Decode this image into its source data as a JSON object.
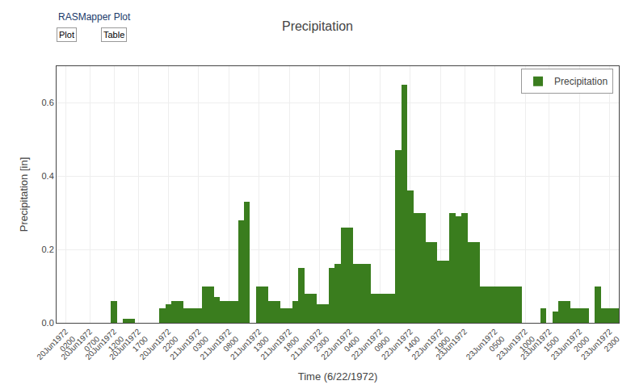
{
  "chart_data": {
    "type": "bar",
    "title": "Precipitation",
    "xlabel": "Time (6/22/1972)",
    "ylabel": "Precipitation [in]",
    "annotations": [
      {
        "text": "RASMapper Plot"
      },
      {
        "text": "Plot"
      },
      {
        "text": "Table"
      }
    ],
    "categories": [
      null,
      "20Jun1972\n0200",
      null,
      null,
      null,
      "20Jun1972\n0700",
      null,
      null,
      null,
      "20Jun1972\n1200",
      null,
      null,
      null,
      "20Jun1972\n1700",
      null,
      null,
      null,
      null,
      "20Jun1972\n2200",
      null,
      null,
      null,
      null,
      "21Jun1972\n0300",
      null,
      null,
      null,
      null,
      "21Jun1972\n0800",
      null,
      null,
      null,
      null,
      "21Jun1972\n1300",
      null,
      null,
      null,
      null,
      "21Jun1972\n1800",
      null,
      null,
      null,
      null,
      "21Jun1972\n2300",
      null,
      null,
      null,
      null,
      "22Jun1972\n0400",
      null,
      null,
      null,
      null,
      "22Jun1972\n0900",
      null,
      null,
      null,
      null,
      "22Jun1972\n1400",
      null,
      null,
      null,
      null,
      "22Jun1972\n1900",
      null,
      null,
      null,
      "23Jun1972",
      null,
      null,
      null,
      null,
      "23Jun1972\n0500",
      null,
      null,
      null,
      null,
      "23Jun1972\n1000",
      null,
      null,
      null,
      "23Jun1972\n1500",
      null,
      null,
      null,
      null,
      "23Jun1972\n2000",
      null,
      null,
      null,
      null,
      "23Jun1972\n2300",
      null
    ],
    "series": [
      {
        "name": "Precipitation",
        "color": "#3a7d1e",
        "values": [
          0.0,
          0.0,
          0.0,
          0.0,
          0.0,
          0.0,
          0.0,
          0.0,
          0.0,
          0.06,
          0.0,
          0.01,
          0.01,
          0.0,
          0.0,
          0.0,
          0.0,
          0.04,
          0.05,
          0.06,
          0.06,
          0.04,
          0.04,
          0.04,
          0.1,
          0.1,
          0.07,
          0.06,
          0.06,
          0.06,
          0.28,
          0.33,
          0.0,
          0.1,
          0.1,
          0.06,
          0.06,
          0.04,
          0.04,
          0.06,
          0.15,
          0.08,
          0.08,
          0.05,
          0.05,
          0.15,
          0.16,
          0.26,
          0.26,
          0.16,
          0.16,
          0.16,
          0.08,
          0.08,
          0.08,
          0.08,
          0.47,
          0.65,
          0.36,
          0.3,
          0.3,
          0.22,
          0.22,
          0.17,
          0.17,
          0.3,
          0.29,
          0.3,
          0.22,
          0.22,
          0.1,
          0.1,
          0.1,
          0.1,
          0.1,
          0.1,
          0.1,
          0.0,
          0.0,
          0.0,
          0.04,
          0.0,
          0.03,
          0.06,
          0.06,
          0.04,
          0.04,
          0.04,
          0.0,
          0.1,
          0.04,
          0.04,
          0.04
        ]
      }
    ],
    "ylim": [
      0,
      0.7
    ],
    "yticks": [
      {
        "value": 0,
        "label": "0.0"
      },
      0.2,
      0.4,
      0.6
    ],
    "grid": true,
    "legend": "upper right"
  }
}
